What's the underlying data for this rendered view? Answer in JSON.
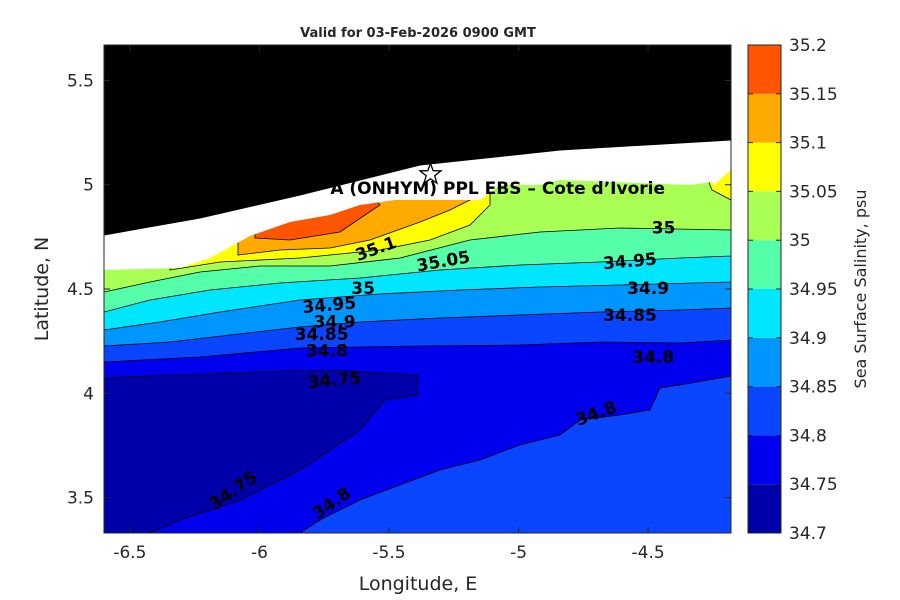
{
  "chart_data": {
    "type": "heatmap",
    "title": "Valid for 03-Feb-2026 0900 GMT",
    "xlabel": "Longitude, E",
    "ylabel": "Latitude, N",
    "xlim": [
      -6.6,
      -4.18
    ],
    "ylim": [
      3.33,
      5.67
    ],
    "xticks": [
      "-6.5",
      "-6",
      "-5.5",
      "-5",
      "-4.5"
    ],
    "yticks": [
      "3.5",
      "4",
      "4.5",
      "5",
      "5.5"
    ],
    "colorbar": {
      "label": "Sea Surface Salinity, psu",
      "levels": [
        "34.7",
        "34.75",
        "34.8",
        "34.85",
        "34.9",
        "34.95",
        "35",
        "35.05",
        "35.1",
        "35.15",
        "35.2"
      ],
      "colors": [
        "#0000aa",
        "#0000ee",
        "#0a46ff",
        "#0096ff",
        "#00e6ff",
        "#55ffaa",
        "#aaff55",
        "#ffff00",
        "#ffaa00",
        "#ff5500"
      ]
    },
    "land_color": "#000000",
    "site_label": "A (ONHYM) PPL EBS  – Cote d’Ivorie",
    "site_marker": {
      "lon": -5.34,
      "lat": 5.05,
      "symbol": "star"
    },
    "contour_labels": [
      {
        "text": "35",
        "lon": -4.44,
        "lat": 4.79,
        "rot": 0
      },
      {
        "text": "35.1",
        "lon": -5.55,
        "lat": 4.69,
        "rot": -20
      },
      {
        "text": "35.05",
        "lon": -5.29,
        "lat": 4.63,
        "rot": -10
      },
      {
        "text": "34.95",
        "lon": -4.57,
        "lat": 4.63,
        "rot": -5
      },
      {
        "text": "35",
        "lon": -5.6,
        "lat": 4.5,
        "rot": 0
      },
      {
        "text": "34.9",
        "lon": -4.5,
        "lat": 4.5,
        "rot": 0
      },
      {
        "text": "34.95",
        "lon": -5.73,
        "lat": 4.42,
        "rot": -5
      },
      {
        "text": "34.85",
        "lon": -4.57,
        "lat": 4.37,
        "rot": 0
      },
      {
        "text": "34.9",
        "lon": -5.71,
        "lat": 4.34,
        "rot": 0
      },
      {
        "text": "34.85",
        "lon": -5.76,
        "lat": 4.28,
        "rot": 0
      },
      {
        "text": "34.8",
        "lon": -5.74,
        "lat": 4.2,
        "rot": 0
      },
      {
        "text": "34.8",
        "lon": -4.48,
        "lat": 4.17,
        "rot": 0
      },
      {
        "text": "34.75",
        "lon": -5.71,
        "lat": 4.06,
        "rot": -5
      },
      {
        "text": "34.8",
        "lon": -4.7,
        "lat": 3.9,
        "rot": -20
      },
      {
        "text": "34.75",
        "lon": -6.1,
        "lat": 3.53,
        "rot": -35
      },
      {
        "text": "34.8",
        "lon": -5.72,
        "lat": 3.47,
        "rot": -35
      }
    ]
  }
}
